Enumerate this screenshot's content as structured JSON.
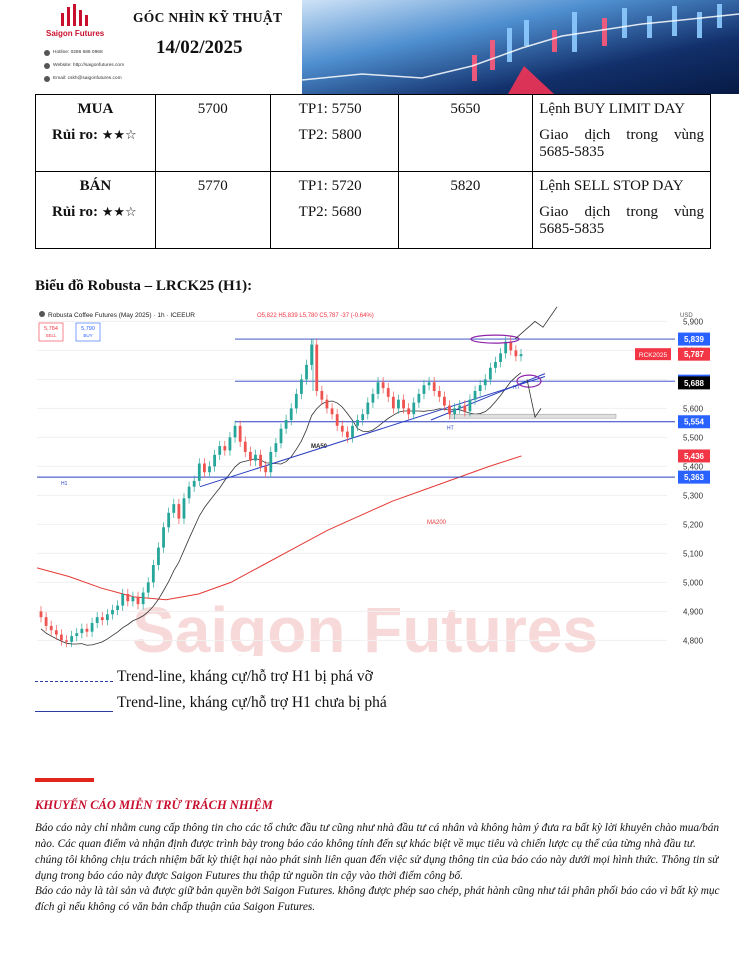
{
  "header": {
    "brand_name": "Saigon Futures",
    "contacts": [
      {
        "icon": "phone-icon",
        "text": "Hotline: 0286 686 0968"
      },
      {
        "icon": "globe-icon",
        "text": "Website: http://saigonfutures.com"
      },
      {
        "icon": "mail-icon",
        "text": "Email: cskh@saigonfutures.com"
      }
    ],
    "title": "GÓC NHÌN KỸ THUẬT",
    "date": "14/02/2025"
  },
  "plan": [
    {
      "side": "MUA",
      "risk_label": "Rủi ro:",
      "risk_stars": "★★☆",
      "entry": "5700",
      "tp1": "TP1: 5750",
      "tp2": "TP2: 5800",
      "stop": "5650",
      "order": "Lệnh BUY LIMIT DAY",
      "zone_line1": "Giao dịch trong vùng",
      "zone_line2": "5685-5835"
    },
    {
      "side": "BÁN",
      "risk_label": "Rủi ro:",
      "risk_stars": "★★☆",
      "entry": "5770",
      "tp1": "TP1: 5720",
      "tp2": "TP2: 5680",
      "stop": "5820",
      "order": "Lệnh SELL STOP DAY",
      "zone_line1": "Giao dịch trong vùng",
      "zone_line2": "5685-5835"
    }
  ],
  "chart_heading": "Biểu đồ Robusta – LRCK25 (H1):",
  "chart_data": {
    "type": "candlestick",
    "symbol_label": "Robusta Coffee Futures (May 2025) · 1h · ICEEUR",
    "ohlc_text": "O5,822 H5,839 L5,780 C5,787 -37 (-0.64%)",
    "sell_price": "5,784",
    "sell_label": "SELL",
    "buy_price": "5,790",
    "buy_label": "BUY",
    "currency": "USD",
    "y_ticks": [
      4800,
      4900,
      5000,
      5100,
      5200,
      5300,
      5400,
      5500,
      5600,
      5700,
      5800,
      5900
    ],
    "y_tick_labels": [
      "4,800",
      "4,900",
      "5,000",
      "5,100",
      "5,200",
      "5,300",
      "5,400",
      "5,500",
      "5,600",
      "5,700",
      "5,800",
      "5,900"
    ],
    "ylim": [
      4760,
      5960
    ],
    "closes": [
      4880,
      4850,
      4835,
      4820,
      4800,
      4795,
      4815,
      4825,
      4840,
      4830,
      4860,
      4880,
      4870,
      4890,
      4905,
      4920,
      4960,
      4935,
      4950,
      4925,
      4965,
      5000,
      5060,
      5120,
      5190,
      5240,
      5270,
      5220,
      5290,
      5330,
      5350,
      5410,
      5380,
      5400,
      5440,
      5470,
      5455,
      5500,
      5540,
      5485,
      5450,
      5420,
      5440,
      5400,
      5380,
      5450,
      5480,
      5530,
      5560,
      5600,
      5650,
      5700,
      5750,
      5820,
      5660,
      5630,
      5600,
      5580,
      5540,
      5520,
      5500,
      5540,
      5560,
      5580,
      5620,
      5650,
      5690,
      5670,
      5640,
      5600,
      5630,
      5600,
      5580,
      5620,
      5650,
      5680,
      5690,
      5660,
      5640,
      5610,
      5580,
      5600,
      5610,
      5590,
      5630,
      5660,
      5680,
      5700,
      5740,
      5760,
      5790,
      5830,
      5800,
      5780,
      5787
    ],
    "levels": [
      {
        "value": 5839,
        "label": "5,839",
        "color": "#2962ff"
      },
      {
        "value": 5787,
        "label": "5,787",
        "tag": "RCK2025",
        "color": "#f23645"
      },
      {
        "value": 5694,
        "label": "5,694",
        "color": "#2962ff"
      },
      {
        "value": 5688,
        "label": "5,688",
        "color": "#000000"
      },
      {
        "value": 5554,
        "label": "5,554",
        "color": "#2962ff"
      },
      {
        "value": 5436,
        "label": "5,436",
        "color": "#f23645"
      },
      {
        "value": 5363,
        "label": "5,363",
        "color": "#2962ff"
      }
    ],
    "annotations": {
      "ma50": "MA50",
      "ma200": "MA200",
      "h1": "H1",
      "ht1": "HT",
      "ht2": "HT",
      "watermark": "Saigon Futures"
    },
    "colors": {
      "up": "#26a69a",
      "down": "#ef5350",
      "ma50": "#333333",
      "ma200": "#e53935",
      "line": "#2a3fbf"
    }
  },
  "legend": {
    "broken": "Trend-line, kháng cự/hỗ trợ H1 bị phá vỡ",
    "intact": "Trend-line, kháng cự/hỗ trợ H1 chưa bị phá"
  },
  "disclaimer": {
    "title": "KHUYẾN CÁO MIỄN TRỪ TRÁCH NHIỆM",
    "p1": "Báo cáo này chỉ nhằm cung cấp thông tin cho các tổ chức đầu tư cũng như nhà đầu tư cá nhân và không hàm ý đưa ra bất kỳ lời khuyên chào mua/bán nào. Các quan điểm và nhận định được trình bày trong báo cáo không tính đến sự khác biệt về mục tiêu và chiến lược cụ thể của từng nhà đầu tư. chúng tôi không chịu trách nhiệm bất kỳ thiệt hại nào phát sinh liên quan đến việc sử dụng thông tin của báo cáo này dưới mọi hình thức. Thông tin sử dụng trong báo cáo này được Saigon Futures thu thập từ nguồn tin cậy vào thời điểm công bố.",
    "p2": "Báo cáo này là tài sản và được giữ bản quyền bởi Saigon Futures. không được phép sao chép, phát hành cũng như tái phân phối báo cáo vì bất kỳ mục đích gì nếu không có văn bản chấp thuận của Saigon Futures."
  }
}
